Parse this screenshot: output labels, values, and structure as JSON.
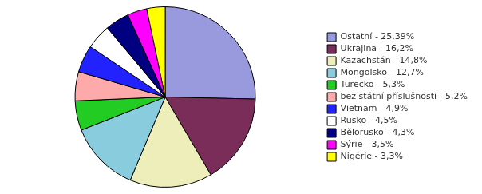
{
  "chart_data": {
    "type": "pie",
    "categories": [
      "Ostatní - 25,39%",
      "Ukrajina - 16,2%",
      "Kazachstán - 14,8%",
      "Mongolsko - 12,7%",
      "Turecko - 5,3%",
      "bez státní příslušnosti - 5,2%",
      "Vietnam - 4,9%",
      "Rusko - 4,5%",
      "Bělorusko - 4,3%",
      "Sýrie - 3,5%",
      "Nigérie - 3,3%"
    ],
    "values": [
      25.39,
      16.2,
      14.8,
      12.7,
      5.3,
      5.2,
      4.9,
      4.5,
      4.3,
      3.5,
      3.3
    ],
    "colors": [
      "#9999DD",
      "#7B2D5A",
      "#EEEEBB",
      "#88CCDD",
      "#22CC22",
      "#FFAAAA",
      "#2222FF",
      "#FFFFFF",
      "#000080",
      "#FF00FF",
      "#FFFF00"
    ],
    "legend": "right"
  }
}
